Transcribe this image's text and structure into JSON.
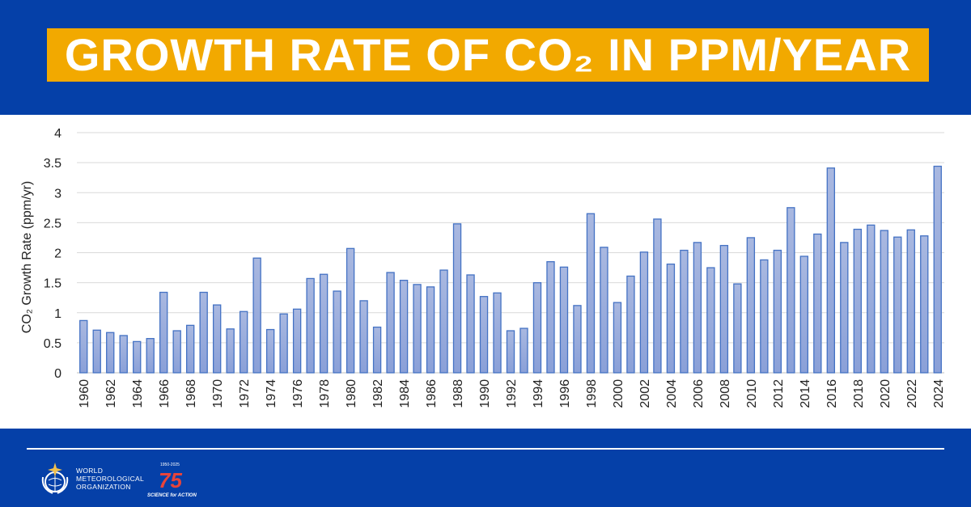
{
  "header": {
    "title": "GROWTH RATE OF CO₂ IN PPM/YEAR"
  },
  "footer": {
    "org_lines": [
      "WORLD",
      "METEOROLOGICAL",
      "ORGANIZATION"
    ],
    "anniversary_logo_text": "1950-2025 75 SCIENCE for ACTION"
  },
  "colors": {
    "background": "#0540a8",
    "title_box": "#f2a900",
    "bar_fill": "#98abdc",
    "bar_edge": "#4472c4"
  },
  "chart_data": {
    "type": "bar",
    "title": "",
    "xlabel": "",
    "ylabel": "CO₂ Growth Rate (ppm/yr)",
    "ylim": [
      0,
      4
    ],
    "yticks": [
      "0",
      "0.5",
      "1",
      "1.5",
      "2",
      "2.5",
      "3",
      "3.5",
      "4"
    ],
    "grid": true,
    "categories": [
      1960,
      1961,
      1962,
      1963,
      1964,
      1965,
      1966,
      1967,
      1968,
      1969,
      1970,
      1971,
      1972,
      1973,
      1974,
      1975,
      1976,
      1977,
      1978,
      1979,
      1980,
      1981,
      1982,
      1983,
      1984,
      1985,
      1986,
      1987,
      1988,
      1989,
      1990,
      1991,
      1992,
      1993,
      1994,
      1995,
      1996,
      1997,
      1998,
      1999,
      2000,
      2001,
      2002,
      2003,
      2004,
      2005,
      2006,
      2007,
      2008,
      2009,
      2010,
      2011,
      2012,
      2013,
      2014,
      2015,
      2016,
      2017,
      2018,
      2019,
      2020,
      2021,
      2022,
      2023,
      2024
    ],
    "values": [
      0.87,
      0.71,
      0.67,
      0.62,
      0.52,
      0.57,
      1.34,
      0.7,
      0.79,
      1.34,
      1.13,
      0.73,
      1.02,
      1.91,
      0.72,
      0.98,
      1.06,
      1.57,
      1.64,
      1.36,
      2.07,
      1.2,
      0.76,
      1.67,
      1.54,
      1.47,
      1.43,
      1.71,
      2.48,
      1.63,
      1.27,
      1.33,
      0.7,
      0.74,
      1.5,
      1.85,
      1.76,
      1.12,
      2.65,
      2.09,
      1.17,
      1.61,
      2.01,
      2.56,
      1.81,
      2.04,
      2.17,
      1.75,
      2.12,
      1.48,
      2.25,
      1.88,
      2.04,
      2.75,
      1.94,
      2.31,
      3.41,
      2.17,
      2.39,
      2.46,
      2.37,
      2.26,
      2.38,
      2.28,
      3.44
    ],
    "xtick_labels": [
      "1960",
      "1962",
      "1964",
      "1966",
      "1968",
      "1970",
      "1972",
      "1974",
      "1976",
      "1978",
      "1980",
      "1982",
      "1984",
      "1986",
      "1988",
      "1990",
      "1992",
      "1994",
      "1996",
      "1998",
      "2000",
      "2002",
      "2004",
      "2006",
      "2008",
      "2010",
      "2012",
      "2014",
      "2016",
      "2018",
      "2020",
      "2022",
      "2024"
    ]
  }
}
